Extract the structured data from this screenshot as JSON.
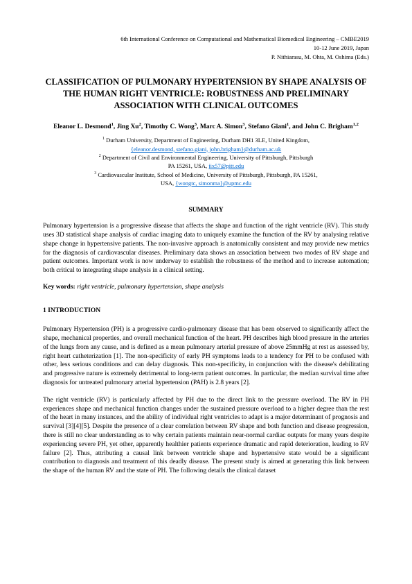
{
  "conference": {
    "line1": "6th International Conference on Computational and Mathematical Biomedical Engineering – CMBE2019",
    "line2": "10-12 June 2019, Japan",
    "line3": "P. Nithiarasu, M. Ohta, M. Oshima (Eds.)"
  },
  "title": "CLASSIFICATION OF PULMONARY HYPERTENSION BY SHAPE ANALYSIS OF THE HUMAN RIGHT VENTRICLE: ROBUSTNESS AND PRELIMINARY ASSOCIATION WITH CLINICAL OUTCOMES",
  "authors_html": "Eleanor L. Desmond<sup>1</sup>, Jing Xu<sup>2</sup>, Timothy C. Wong<sup>3</sup>, Marc A. Simon<sup>3</sup>, Stefano Giani<sup>1</sup>, and John C. Brigham<sup>1,2</sup>",
  "affiliations": {
    "a1": "1 Durham University, Department of Engineering, Durham DH1 3LE, United Kingdom,",
    "a1_email": "{eleanor.desmond, stefano.giani, john.brigham}@durham.ac.uk",
    "a2": "2 Department of Civil and Environmental Engineering, University of Pittsburgh, Pittsburgh PA 15261, USA, ",
    "a2_email": "jix57@pitt.edu",
    "a3": "3 Cardiovascular Institute, School of Medicine, University of Pittsburgh, Pittsburgh, PA 15261, USA, ",
    "a3_email": "{wongtc, simonma}@upmc.edu"
  },
  "summary_heading": "SUMMARY",
  "summary_body": "Pulmonary hypertension is a progressive disease that affects the shape and function of the right ventricle (RV). This study uses 3D statistical shape analysis of cardiac imaging data to uniquely examine the function of the RV by analysing relative shape change in hypertensive patients. The non-invasive approach is anatomically consistent and may provide new metrics for the diagnosis of cardiovascular diseases. Preliminary data shows an association between two modes of RV shape and patient outcomes. Important work is now underway to establish the robustness of the method and to increase automation; both critical to integrating shape analysis in a clinical setting.",
  "keywords_label": "Key words:",
  "keywords_value": "right ventricle, pulmonary hypertension, shape analysis",
  "intro_heading": "1   INTRODUCTION",
  "para1": "Pulmonary Hypertension (PH) is a progressive cardio-pulmonary disease that has been observed to significantly affect the shape, mechanical properties, and overall mechanical function of the heart. PH describes high blood pressure in the arteries of the lungs from any cause, and is defined as a mean pulmonary arterial pressure of above 25mmHg at rest as assessed by, right heart catheterization [1]. The non-specificity of early PH symptoms leads to a tendency for PH to be confused with other, less serious conditions and can delay diagnosis. This non-specificity, in conjunction with the disease's debilitating and progressive nature is extremely detrimental to long-term patient outcomes.  In particular, the median survival time after diagnosis for untreated pulmonary arterial hypertension (PAH) is 2.8 years [2].",
  "para2": "The right ventricle (RV) is particularly affected by PH due to the direct link to the pressure overload.  The RV in PH experiences shape and mechanical function changes under the sustained pressure overload to a higher degree than the rest of the heart in many instances, and the ability of individual right ventricles to adapt is a major determinant of prognosis and survival [3][4][5]. Despite the presence of a clear correlation between RV shape and both function and disease progression, there is still no clear understanding as to why certain patients maintain near-normal cardiac outputs for many years despite experiencing severe PH, yet other, apparently healthier patients experience dramatic and rapid deterioration, leading to RV failure [2]. Thus, attributing a causal link between ventricle shape and hypertensive state would be a significant contribution to diagnosis and treatment of this deadly disease.  The present study is aimed at generating this link between the shape of the human RV and the state of PH.  The following details the clinical dataset"
}
